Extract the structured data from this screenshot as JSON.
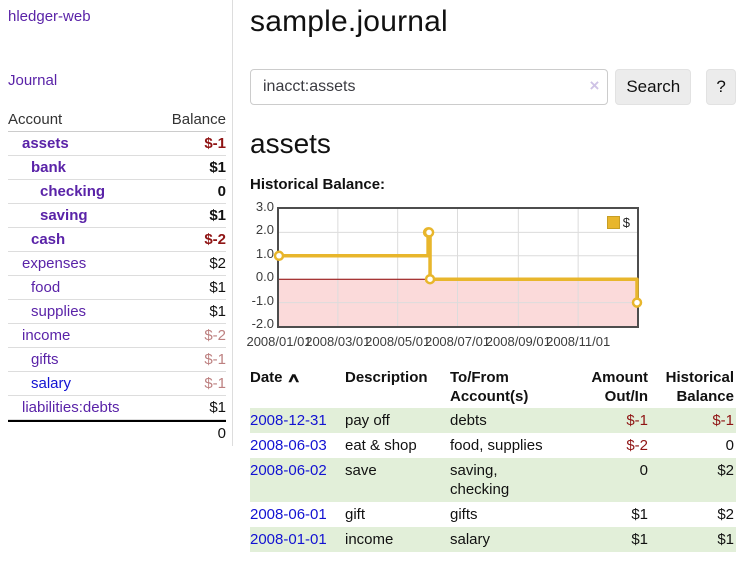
{
  "app": {
    "brand": "hledger-web",
    "nav_journal": "Journal"
  },
  "icons": {
    "clear": "×",
    "sort_asc": "∧"
  },
  "colors": {
    "accent_purple": "#5a23a8",
    "link_blue": "#1212d2",
    "negative_red": "#8f1414",
    "muted_negative": "#bd8080",
    "row_stripe_green": "#e2efd9",
    "series_gold": "#e8b62c",
    "negative_zone_pink": "#fbdada",
    "zero_line": "#8b0000"
  },
  "sidebar": {
    "header": {
      "account": "Account",
      "balance": "Balance"
    },
    "accounts": [
      {
        "name": "assets",
        "level": 1,
        "bold": true,
        "blue": false,
        "balance": "$-1",
        "neg": true,
        "muted": false
      },
      {
        "name": "bank",
        "level": 2,
        "bold": true,
        "blue": false,
        "balance": "$1",
        "neg": false,
        "muted": false
      },
      {
        "name": "checking",
        "level": 3,
        "bold": true,
        "blue": false,
        "balance": "0",
        "neg": false,
        "muted": false
      },
      {
        "name": "saving",
        "level": 3,
        "bold": true,
        "blue": false,
        "balance": "$1",
        "neg": false,
        "muted": false
      },
      {
        "name": "cash",
        "level": 2,
        "bold": true,
        "blue": false,
        "balance": "$-2",
        "neg": true,
        "muted": false
      },
      {
        "name": "expenses",
        "level": 1,
        "bold": false,
        "blue": false,
        "balance": "$2",
        "neg": false,
        "muted": false
      },
      {
        "name": "food",
        "level": 2,
        "bold": false,
        "blue": false,
        "balance": "$1",
        "neg": false,
        "muted": false
      },
      {
        "name": "supplies",
        "level": 2,
        "bold": false,
        "blue": false,
        "balance": "$1",
        "neg": false,
        "muted": false
      },
      {
        "name": "income",
        "level": 1,
        "bold": false,
        "blue": false,
        "balance": "$-2",
        "neg": true,
        "muted": true
      },
      {
        "name": "gifts",
        "level": 2,
        "bold": false,
        "blue": false,
        "balance": "$-1",
        "neg": true,
        "muted": true
      },
      {
        "name": "salary",
        "level": 2,
        "bold": false,
        "blue": true,
        "balance": "$-1",
        "neg": true,
        "muted": true
      },
      {
        "name": "liabilities:debts",
        "level": 1,
        "bold": false,
        "blue": false,
        "balance": "$1",
        "neg": false,
        "muted": false
      }
    ],
    "total": "0"
  },
  "main": {
    "title": "sample.journal",
    "search": {
      "value": "inacct:assets",
      "button": "Search",
      "help_button": "?"
    },
    "heading": "assets",
    "chart_title": "Historical Balance:"
  },
  "chart_data": {
    "type": "line",
    "subtype": "step",
    "title": "Historical Balance:",
    "x_range": [
      "2008-01-01",
      "2008-12-31"
    ],
    "ylim": [
      -2,
      3
    ],
    "y_ticks": [
      "3.0",
      "2.0",
      "1.0",
      "0.0",
      "-1.0",
      "-2.0"
    ],
    "x_ticks": [
      "2008/01/01",
      "2008/03/01",
      "2008/05/01",
      "2008/07/01",
      "2008/09/01",
      "2008/11/01"
    ],
    "grid": true,
    "legend_position": "top-right",
    "series": [
      {
        "name": "$",
        "color": "#e8b62c",
        "points": [
          [
            "2008-01-01",
            1
          ],
          [
            "2008-06-01",
            2
          ],
          [
            "2008-06-02",
            2
          ],
          [
            "2008-06-03",
            0
          ],
          [
            "2008-12-31",
            -1
          ]
        ]
      }
    ]
  },
  "register": {
    "headers": {
      "date": "Date",
      "description": "Description",
      "account": "To/From Account(s)",
      "amount": "Amount Out/In",
      "balance": "Historical Balance"
    },
    "rows": [
      {
        "date": "2008-12-31",
        "description": "pay off",
        "accounts": "debts",
        "amount": "$-1",
        "amount_neg": true,
        "balance": "$-1",
        "balance_neg": true
      },
      {
        "date": "2008-06-03",
        "description": "eat & shop",
        "accounts": "food, supplies",
        "amount": "$-2",
        "amount_neg": true,
        "balance": "0",
        "balance_neg": false
      },
      {
        "date": "2008-06-02",
        "description": "save",
        "accounts": "saving, checking",
        "amount": "0",
        "amount_neg": false,
        "balance": "$2",
        "balance_neg": false
      },
      {
        "date": "2008-06-01",
        "description": "gift",
        "accounts": "gifts",
        "amount": "$1",
        "amount_neg": false,
        "balance": "$2",
        "balance_neg": false
      },
      {
        "date": "2008-01-01",
        "description": "income",
        "accounts": "salary",
        "amount": "$1",
        "amount_neg": false,
        "balance": "$1",
        "balance_neg": false
      }
    ]
  }
}
